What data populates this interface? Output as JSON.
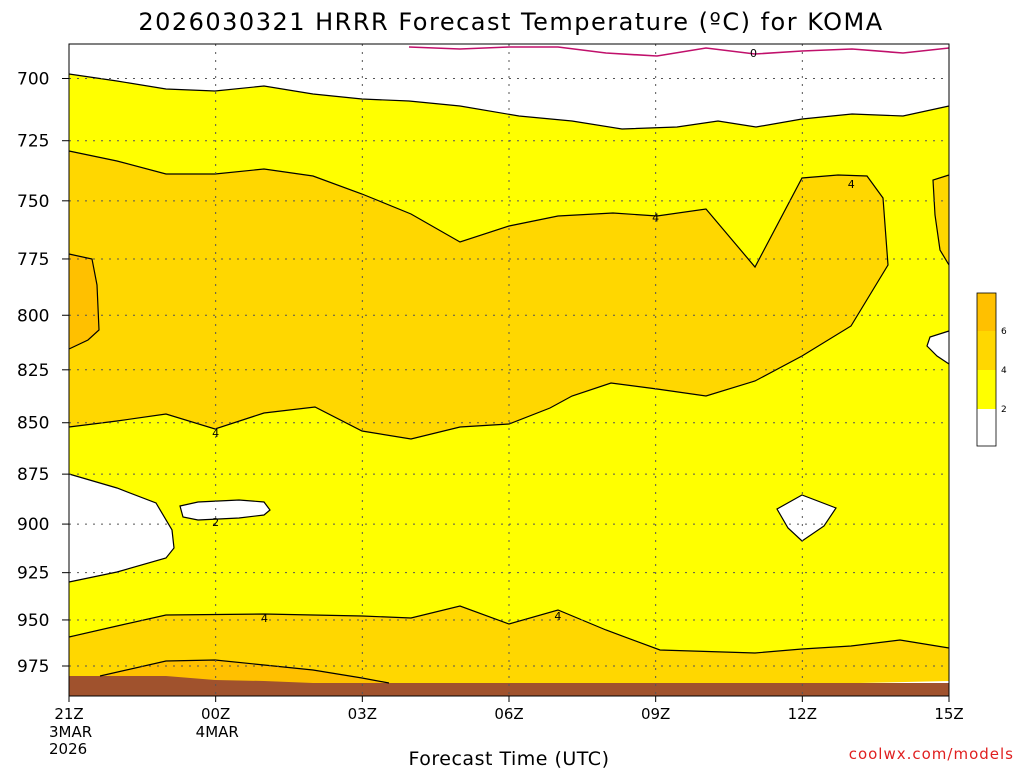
{
  "chart_data": {
    "type": "heatmap",
    "title": "2026030321 HRRR Forecast Temperature (ºC) for KOMA",
    "xlabel": "Forecast Time (UTC)",
    "ylabel": "",
    "credit": "coolwx.com/models",
    "y_scale": "pressure (hPa), increasing downward",
    "y_ticks": [
      "700",
      "725",
      "750",
      "775",
      "800",
      "825",
      "850",
      "875",
      "900",
      "925",
      "950",
      "975"
    ],
    "x_ticks": [
      {
        "label": "21Z",
        "sub": [
          "3MAR",
          "2026"
        ]
      },
      {
        "label": "00Z",
        "sub": [
          "4MAR"
        ]
      },
      {
        "label": "03Z",
        "sub": []
      },
      {
        "label": "06Z",
        "sub": []
      },
      {
        "label": "09Z",
        "sub": []
      },
      {
        "label": "12Z",
        "sub": []
      },
      {
        "label": "15Z",
        "sub": []
      }
    ],
    "xlim": [
      "2026-03-03T21Z",
      "2026-03-04T15Z"
    ],
    "ylim": [
      977,
      692
    ],
    "grid": true,
    "contour_levels": [
      0,
      2,
      4,
      6
    ],
    "contour_labels": [
      {
        "text": "0",
        "time": "2026-03-04T11Z",
        "pressure": 690
      },
      {
        "text": "4",
        "time": "2026-03-04T13Z",
        "pressure": 743
      },
      {
        "text": "4",
        "time": "2026-03-04T09Z",
        "pressure": 757
      },
      {
        "text": "4",
        "time": "2026-03-04T00Z",
        "pressure": 855
      },
      {
        "text": "2",
        "time": "2026-03-04T00Z",
        "pressure": 899
      },
      {
        "text": "4",
        "time": "2026-03-04T01Z",
        "pressure": 949
      },
      {
        "text": "4",
        "time": "2026-03-04T07Z",
        "pressure": 948
      }
    ],
    "colorbar": {
      "ticks": [
        "2",
        "4",
        "6"
      ],
      "colors": [
        "#ffffff",
        "#ffff00",
        "#ffd700",
        "#ffc000"
      ]
    },
    "fill_colors": {
      "below_2": "#ffffff",
      "2_to_4": "#ffff00",
      "4_to_6": "#ffd700",
      "6_plus": "#ffc000",
      "ground": "#a0522d"
    },
    "zero_line_color": "#c0106b"
  }
}
